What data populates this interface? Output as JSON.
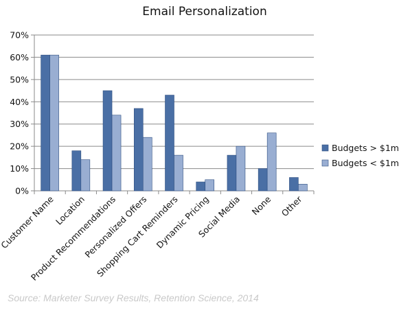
{
  "chart_data": {
    "type": "bar",
    "title": "Email Personalization",
    "categories": [
      "Customer Name",
      "Location",
      "Product Recommendations",
      "Personalized Offers",
      "Shopping Cart Reminders",
      "Dynamic Pricing",
      "Social Media",
      "None",
      "Other"
    ],
    "series": [
      {
        "name": "Budgets > $1m",
        "color": "#4a6fa5",
        "values": [
          61,
          18,
          45,
          37,
          43,
          4,
          16,
          10,
          6
        ]
      },
      {
        "name": "Budgets < $1m",
        "color": "#99aed2",
        "values": [
          61,
          14,
          34,
          24,
          16,
          5,
          20,
          26,
          3
        ]
      }
    ],
    "y_ticks": [
      "0%",
      "10%",
      "20%",
      "30%",
      "40%",
      "50%",
      "60%",
      "70%"
    ],
    "ylim": [
      0,
      70
    ],
    "grid": true,
    "legend_position": "right",
    "source": "Source: Marketer Survey Results, Retention Science, 2014"
  }
}
